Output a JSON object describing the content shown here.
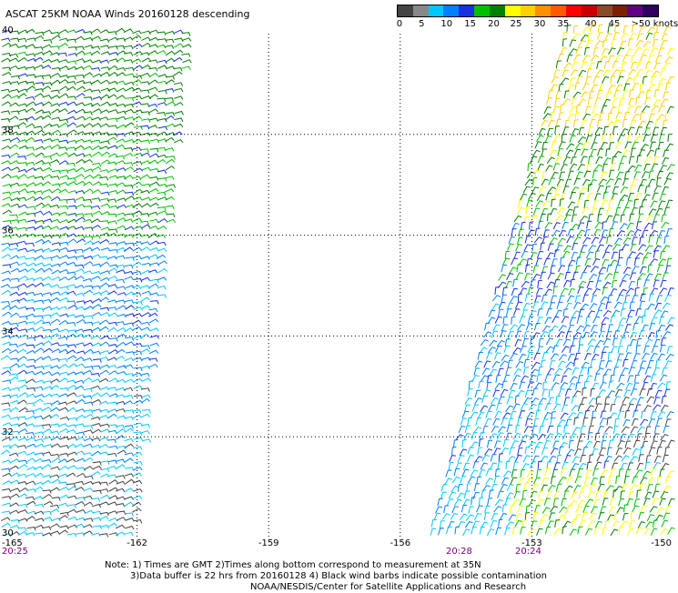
{
  "title": "ASCAT 25KM NOAA Winds 20160128 descending",
  "legend": {
    "colors": [
      "#444444",
      "#888888",
      "#00c8ff",
      "#0080ff",
      "#1830e0",
      "#00c000",
      "#008000",
      "#ffff00",
      "#ffd000",
      "#ff9000",
      "#ff5a00",
      "#ff0000",
      "#c80000",
      "#8a4a2a",
      "#7a2000",
      "#600080",
      "#300060"
    ],
    "labels": [
      "0",
      "5",
      "10",
      "15",
      "20",
      "25",
      "30",
      "35",
      "40",
      "45",
      ">50 knots"
    ],
    "label_fractions": [
      0.01,
      0.095,
      0.19,
      0.28,
      0.37,
      0.455,
      0.545,
      0.635,
      0.74,
      0.83,
      0.93
    ]
  },
  "map": {
    "lat_labels": [
      "40",
      "38",
      "36",
      "34",
      "32",
      "30"
    ],
    "lon_labels": [
      "-165",
      "-162",
      "-159",
      "-156",
      "-153",
      "-150"
    ],
    "time_labels": [
      "20:25",
      "20:28",
      "20:24"
    ]
  },
  "notes": {
    "line1": "Note: 1) Times are GMT 2)Times along bottom correspond to measurement at 35N",
    "line2": "3)Data buffer is 22 hrs from 20160128 4) Black wind barbs indicate possible contamination",
    "line3": "NOAA/NESDIS/Center for Satellite Applications and Research"
  }
}
